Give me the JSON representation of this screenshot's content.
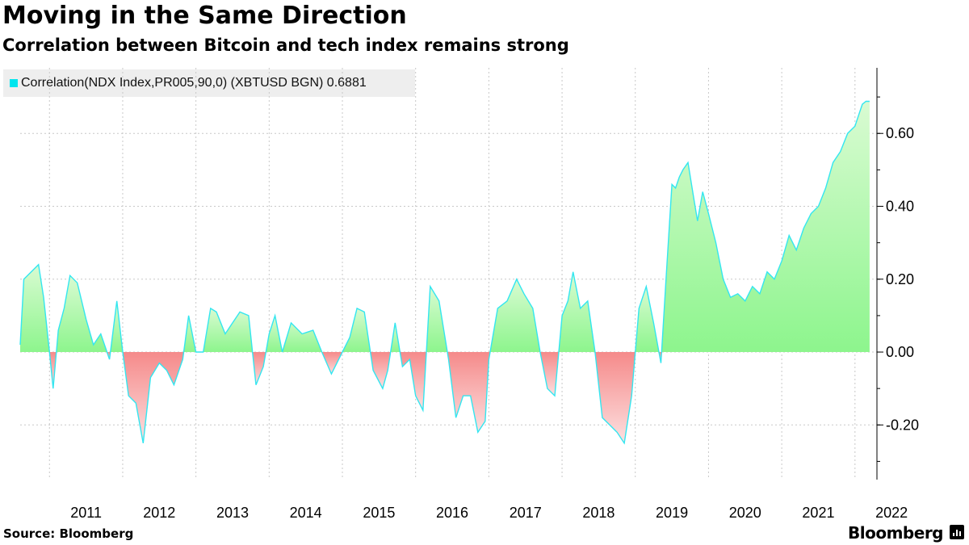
{
  "title": "Moving in the Same Direction",
  "subtitle": "Correlation between Bitcoin and tech index remains strong",
  "source": "Source: Bloomberg",
  "brand": "Bloomberg",
  "colors": {
    "positive": "#8df58d",
    "negative": "#f58a8a",
    "line": "#33e6f0",
    "grid": "#c8c8c8"
  },
  "chart_data": {
    "type": "area",
    "title": "Moving in the Same Direction",
    "subtitle": "Correlation between Bitcoin and tech index remains strong",
    "legend": {
      "label": "Correlation(NDX Index,PR005,90,0) (XBTUSD BGN) 0.6881",
      "placement": "top-left"
    },
    "xlabel": "",
    "ylabel": "",
    "ylim": [
      -0.35,
      0.78
    ],
    "y_ticks": [
      0.6,
      0.4,
      0.2,
      0.0,
      -0.2
    ],
    "y_tick_labels": [
      "0.60",
      "0.40",
      "0.20",
      "0.00",
      "-0.20"
    ],
    "x_ticks": [
      2011,
      2012,
      2013,
      2014,
      2015,
      2016,
      2017,
      2018,
      2019,
      2020,
      2021,
      2022
    ],
    "x_tick_labels": [
      "2011",
      "2012",
      "2013",
      "2014",
      "2015",
      "2016",
      "2017",
      "2018",
      "2019",
      "2020",
      "2021",
      "2022"
    ],
    "xlim": [
      2010.6,
      2022.3
    ],
    "grid": true,
    "series": [
      {
        "name": "Correlation(NDX Index,PR005,90,0) (XBTUSD BGN)",
        "last_value": 0.6881,
        "x": [
          2010.6,
          2010.65,
          2010.75,
          2010.85,
          2010.92,
          2011.0,
          2011.05,
          2011.12,
          2011.2,
          2011.28,
          2011.38,
          2011.5,
          2011.6,
          2011.7,
          2011.82,
          2011.92,
          2012.0,
          2012.08,
          2012.18,
          2012.28,
          2012.38,
          2012.5,
          2012.6,
          2012.7,
          2012.82,
          2012.9,
          2013.0,
          2013.1,
          2013.2,
          2013.28,
          2013.4,
          2013.5,
          2013.6,
          2013.72,
          2013.82,
          2013.92,
          2014.0,
          2014.08,
          2014.18,
          2014.3,
          2014.45,
          2014.6,
          2014.72,
          2014.85,
          2015.0,
          2015.1,
          2015.2,
          2015.3,
          2015.42,
          2015.55,
          2015.62,
          2015.72,
          2015.82,
          2015.92,
          2016.0,
          2016.1,
          2016.2,
          2016.32,
          2016.45,
          2016.55,
          2016.65,
          2016.75,
          2016.85,
          2016.95,
          2017.0,
          2017.12,
          2017.25,
          2017.38,
          2017.48,
          2017.6,
          2017.7,
          2017.8,
          2017.9,
          2018.0,
          2018.08,
          2018.15,
          2018.25,
          2018.35,
          2018.45,
          2018.55,
          2018.65,
          2018.75,
          2018.85,
          2018.95,
          2019.05,
          2019.15,
          2019.25,
          2019.35,
          2019.42,
          2019.5,
          2019.55,
          2019.6,
          2019.65,
          2019.72,
          2019.8,
          2019.85,
          2019.92,
          2020.0,
          2020.1,
          2020.2,
          2020.3,
          2020.4,
          2020.5,
          2020.6,
          2020.7,
          2020.8,
          2020.9,
          2021.0,
          2021.1,
          2021.2,
          2021.3,
          2021.4,
          2021.5,
          2021.6,
          2021.7,
          2021.8,
          2021.9,
          2022.0,
          2022.05,
          2022.1,
          2022.15,
          2022.2
        ],
        "y": [
          0.02,
          0.2,
          0.22,
          0.24,
          0.15,
          0.0,
          -0.1,
          0.06,
          0.12,
          0.21,
          0.19,
          0.09,
          0.02,
          0.05,
          -0.02,
          0.14,
          0.0,
          -0.12,
          -0.14,
          -0.25,
          -0.07,
          -0.03,
          -0.05,
          -0.09,
          -0.02,
          0.1,
          0.0,
          0.0,
          0.12,
          0.11,
          0.05,
          0.08,
          0.11,
          0.1,
          -0.09,
          -0.04,
          0.05,
          0.1,
          0.0,
          0.08,
          0.05,
          0.06,
          0.0,
          -0.06,
          0.0,
          0.04,
          0.12,
          0.11,
          -0.05,
          -0.1,
          -0.05,
          0.08,
          -0.04,
          -0.02,
          -0.12,
          -0.16,
          0.18,
          0.14,
          -0.02,
          -0.18,
          -0.12,
          -0.12,
          -0.22,
          -0.19,
          -0.02,
          0.12,
          0.14,
          0.2,
          0.16,
          0.12,
          0.0,
          -0.1,
          -0.12,
          0.1,
          0.14,
          0.22,
          0.12,
          0.14,
          0.0,
          -0.18,
          -0.2,
          -0.22,
          -0.25,
          -0.12,
          0.12,
          0.18,
          0.08,
          -0.03,
          0.2,
          0.46,
          0.45,
          0.48,
          0.5,
          0.52,
          0.42,
          0.36,
          0.44,
          0.38,
          0.3,
          0.2,
          0.15,
          0.16,
          0.14,
          0.18,
          0.16,
          0.22,
          0.2,
          0.25,
          0.32,
          0.28,
          0.34,
          0.38,
          0.4,
          0.45,
          0.52,
          0.55,
          0.6,
          0.62,
          0.65,
          0.68,
          0.6881,
          0.6881
        ]
      }
    ]
  }
}
